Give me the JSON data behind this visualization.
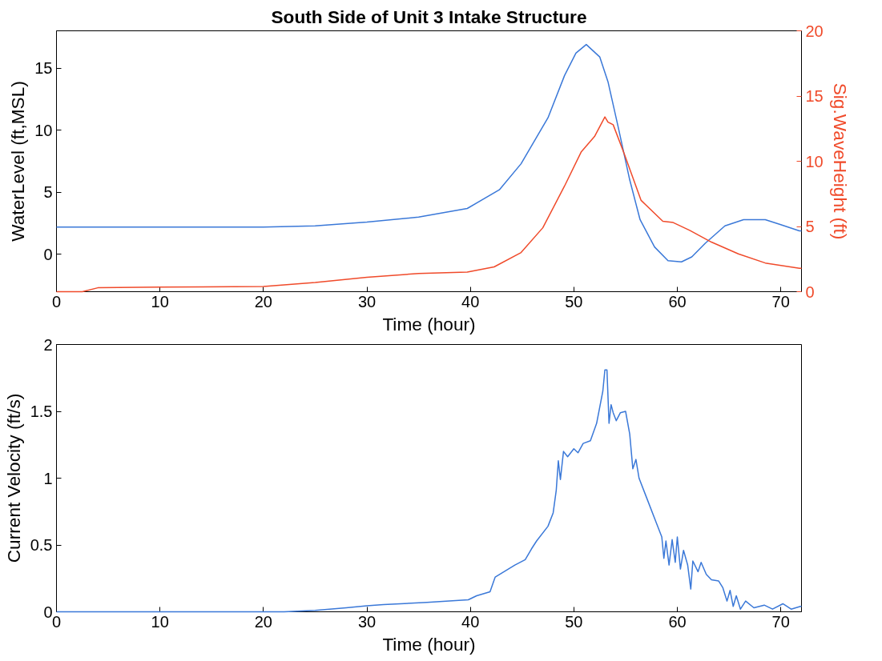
{
  "chart_data": [
    {
      "type": "line",
      "title": "South Side of Unit 3 Intake Structure",
      "xlabel": "Time (hour)",
      "ylabel": "WaterLevel (ft,MSL)",
      "y2label": "Sig.WaveHeight (ft)",
      "xlim": [
        0,
        72
      ],
      "xticks": [
        0,
        10,
        20,
        30,
        40,
        50,
        60,
        70
      ],
      "ylim": [
        -3,
        18
      ],
      "yticks": [
        0,
        5,
        10,
        15
      ],
      "y2lim": [
        0,
        20
      ],
      "y2ticks": [
        0,
        5,
        10,
        15,
        20
      ],
      "line_style": "solid",
      "marker": "none",
      "series": [
        {
          "color": "#3a78d8",
          "x": [
            0,
            10,
            20,
            25,
            30,
            35,
            39.7,
            42.8,
            44.9,
            47.5,
            49.1,
            50.2,
            51.2,
            52.5,
            53.3,
            54.3,
            55.4,
            56.4,
            57.8,
            59.1,
            60.4,
            61.4,
            62.7,
            64.6,
            66.4,
            68.5,
            70.0,
            71.8,
            72
          ],
          "values": [
            2.2,
            2.2,
            2.2,
            2.3,
            2.6,
            3.0,
            3.7,
            5.2,
            7.3,
            11.0,
            14.4,
            16.2,
            16.9,
            15.9,
            13.9,
            10.2,
            6.0,
            2.8,
            0.6,
            -0.5,
            -0.6,
            -0.2,
            0.9,
            2.3,
            2.8,
            2.8,
            2.4,
            1.9,
            1.9
          ]
        },
        {
          "color": "#f04a2a",
          "axis": "y2",
          "x": [
            0,
            2.5,
            4,
            10,
            20,
            25,
            30,
            35,
            39.7,
            42.3,
            44.9,
            47.0,
            49.1,
            50.7,
            52.0,
            53.0,
            53.3,
            53.8,
            54.9,
            56.5,
            58.6,
            59.6,
            61.2,
            63.3,
            65.9,
            68.5,
            71.8,
            72
          ],
          "values": [
            0,
            0,
            0.3,
            0.35,
            0.4,
            0.7,
            1.1,
            1.4,
            1.5,
            1.9,
            3.0,
            4.9,
            8.1,
            10.7,
            11.9,
            13.4,
            13.0,
            12.8,
            10.5,
            7.0,
            5.4,
            5.3,
            4.7,
            3.8,
            2.9,
            2.2,
            1.8,
            1.8
          ]
        }
      ]
    },
    {
      "type": "line",
      "xlabel": "Time (hour)",
      "ylabel": "Current Velocity (ft/s)",
      "xlim": [
        0,
        72
      ],
      "xticks": [
        0,
        10,
        20,
        30,
        40,
        50,
        60,
        70
      ],
      "ylim": [
        0,
        2
      ],
      "yticks": [
        0,
        0.5,
        1,
        1.5,
        2
      ],
      "line_style": "solid",
      "marker": "none",
      "series": [
        {
          "color": "#3a78d8",
          "x": [
            0,
            10,
            20,
            22,
            25,
            28,
            30,
            31.6,
            35.8,
            39.8,
            40.6,
            41.9,
            42.4,
            44.3,
            45.3,
            45.9,
            46.4,
            47.5,
            48.0,
            48.3,
            48.5,
            48.7,
            49.0,
            49.4,
            50.0,
            50.4,
            50.9,
            51.6,
            52.2,
            52.8,
            53.0,
            53.2,
            53.4,
            53.6,
            53.8,
            54.1,
            54.5,
            55.0,
            55.4,
            55.7,
            56.0,
            56.3,
            57.0,
            57.9,
            58.5,
            58.7,
            58.9,
            59.2,
            59.5,
            59.8,
            60.0,
            60.3,
            60.6,
            61.0,
            61.3,
            61.5,
            62.0,
            62.3,
            62.8,
            63.3,
            64.0,
            64.4,
            64.8,
            65.1,
            65.4,
            65.7,
            66.1,
            66.6,
            67.4,
            68.4,
            69.2,
            70.2,
            71.0,
            71.9,
            72
          ],
          "values": [
            0,
            0,
            0,
            0,
            0.01,
            0.03,
            0.045,
            0.054,
            0.07,
            0.09,
            0.12,
            0.15,
            0.26,
            0.35,
            0.39,
            0.47,
            0.53,
            0.64,
            0.74,
            0.91,
            1.13,
            0.99,
            1.2,
            1.16,
            1.22,
            1.19,
            1.26,
            1.28,
            1.41,
            1.65,
            1.81,
            1.81,
            1.41,
            1.55,
            1.49,
            1.43,
            1.49,
            1.5,
            1.33,
            1.07,
            1.14,
            1.0,
            0.86,
            0.68,
            0.56,
            0.4,
            0.53,
            0.35,
            0.54,
            0.37,
            0.56,
            0.32,
            0.46,
            0.35,
            0.17,
            0.38,
            0.3,
            0.37,
            0.28,
            0.24,
            0.23,
            0.18,
            0.08,
            0.16,
            0.04,
            0.12,
            0.02,
            0.08,
            0.03,
            0.05,
            0.02,
            0.06,
            0.02,
            0.04,
            0.04
          ]
        }
      ]
    }
  ]
}
